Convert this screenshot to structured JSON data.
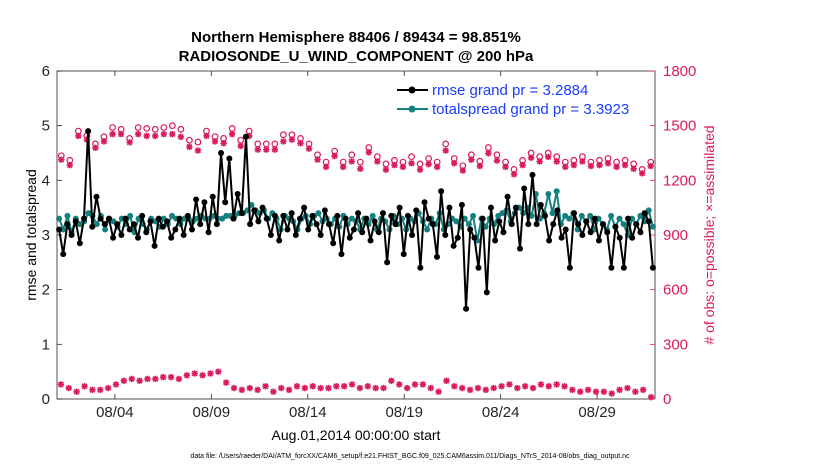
{
  "chart_data": {
    "type": "line",
    "title_line1": "Northern Hemisphere 88406 / 89434 = 98.851%",
    "title_line2": "RADIOSONDE_U_WIND_COMPONENT @ 200 hPa",
    "xlabel": "Aug.01,2014 00:00:00 start",
    "ylabel_left": "rmse and totalspread",
    "ylabel_right": "# of obs: o=possible; ×=assimilated",
    "xlim": [
      0,
      31
    ],
    "ylim_left": [
      0,
      6
    ],
    "ylim_right": [
      0,
      1800
    ],
    "xticks": [
      3,
      8,
      13,
      18,
      23,
      28
    ],
    "xtick_labels": [
      "08/04",
      "08/09",
      "08/14",
      "08/19",
      "08/24",
      "08/29"
    ],
    "yticks_left": [
      0,
      1,
      2,
      3,
      4,
      5,
      6
    ],
    "yticks_left_labels": [
      "0",
      "1",
      "2",
      "3",
      "4",
      "5",
      "6"
    ],
    "yticks_right": [
      0,
      300,
      600,
      900,
      1200,
      1500,
      1800
    ],
    "yticks_right_labels": [
      "0",
      "300",
      "600",
      "900",
      "1200",
      "1500",
      "1800"
    ],
    "legend": [
      {
        "name": "rmse grand pr = 3.2884"
      },
      {
        "name": "totalspread grand pr = 3.3923"
      }
    ],
    "colors": {
      "rmse": "#000000",
      "spread": "#158080",
      "obs": "#d81b60",
      "legend_text": "#1a3cff"
    },
    "footer": "data file: /Users/raeder/DAI/ATM_forcXX/CAM6_setup/f.e21.FHIST_BGC.f09_025.CAM6assim.011/Diags_NTrS_2014-08/obs_diag_output.nc",
    "series": [
      {
        "name": "rmse",
        "axis": "left",
        "values": [
          3.1,
          2.65,
          3.2,
          3.0,
          3.25,
          2.85,
          3.3,
          4.9,
          3.15,
          3.7,
          3.3,
          3.2,
          3.3,
          2.95,
          3.2,
          3.0,
          3.3,
          3.1,
          3.2,
          2.95,
          3.35,
          3.05,
          3.25,
          2.8,
          3.3,
          3.15,
          3.25,
          2.95,
          3.1,
          3.3,
          3.0,
          3.35,
          3.1,
          3.65,
          3.2,
          3.6,
          3.05,
          3.7,
          3.2,
          4.5,
          3.6,
          4.4,
          3.3,
          3.75,
          3.4,
          4.8,
          3.2,
          3.45,
          3.25,
          3.5,
          3.3,
          3.0,
          3.35,
          2.9,
          3.35,
          3.1,
          3.4,
          3.0,
          3.3,
          3.5,
          3.1,
          3.35,
          3.2,
          3.0,
          3.45,
          3.2,
          2.85,
          3.35,
          2.65,
          3.3,
          2.95,
          3.1,
          3.4,
          3.05,
          3.3,
          2.9,
          3.25,
          3.05,
          3.4,
          2.5,
          3.35,
          3.2,
          3.5,
          2.65,
          3.35,
          3.0,
          3.45,
          2.4,
          3.6,
          3.3,
          3.2,
          2.6,
          3.8,
          3.0,
          3.5,
          2.8,
          2.95,
          3.55,
          1.65,
          3.1,
          2.95,
          2.4,
          3.3,
          1.95,
          3.5,
          2.9,
          3.25,
          3.05,
          3.7,
          3.2,
          3.5,
          2.75,
          3.85,
          3.2,
          4.1,
          3.2,
          3.55,
          3.35,
          2.9,
          3.2,
          3.45,
          2.95,
          3.1,
          2.4,
          3.4,
          3.2,
          3.0,
          3.25,
          3.05,
          3.3,
          2.9,
          3.2,
          3.05,
          2.4,
          3.15,
          2.95,
          2.4,
          3.3,
          2.95,
          3.2,
          3.05,
          3.4,
          3.25,
          2.4
        ]
      },
      {
        "name": "totalspread",
        "axis": "left",
        "values": [
          3.3,
          3.1,
          3.35,
          3.05,
          3.3,
          3.2,
          3.25,
          3.4,
          3.35,
          3.2,
          3.35,
          3.1,
          3.3,
          3.25,
          3.15,
          3.3,
          3.2,
          3.35,
          3.05,
          3.3,
          3.2,
          3.1,
          3.3,
          3.25,
          3.15,
          3.3,
          3.2,
          3.35,
          3.3,
          3.2,
          3.3,
          3.3,
          3.25,
          3.3,
          3.35,
          3.3,
          3.3,
          3.35,
          3.3,
          3.3,
          3.35,
          3.35,
          3.35,
          3.4,
          3.4,
          3.45,
          3.55,
          3.45,
          3.4,
          3.45,
          3.3,
          3.4,
          3.3,
          3.1,
          3.35,
          3.3,
          3.25,
          3.1,
          3.3,
          3.35,
          3.2,
          3.35,
          3.4,
          3.25,
          3.3,
          3.2,
          3.3,
          3.15,
          3.35,
          3.2,
          3.3,
          3.25,
          3.1,
          3.3,
          3.2,
          3.35,
          3.1,
          3.3,
          3.25,
          3.1,
          3.35,
          3.2,
          3.3,
          3.1,
          3.3,
          3.25,
          3.4,
          3.25,
          3.1,
          3.3,
          3.2,
          3.4,
          3.1,
          3.2,
          3.3,
          3.25,
          3.15,
          3.3,
          3.2,
          3.35,
          2.9,
          3.3,
          3.15,
          3.3,
          3.2,
          3.35,
          3.4,
          3.45,
          3.25,
          3.4,
          3.5,
          3.4,
          3.5,
          3.35,
          3.75,
          3.3,
          3.4,
          3.75,
          3.4,
          3.8,
          3.2,
          3.35,
          3.3,
          3.4,
          3.1,
          3.35,
          3.25,
          3.35,
          3.1,
          3.3,
          3.2,
          3.1,
          3.35,
          3.15,
          3.3,
          3.2,
          3.0,
          3.3,
          3.2,
          3.35,
          3.25,
          3.45,
          3.15
        ]
      },
      {
        "name": "obs_possible",
        "axis": "right",
        "values": [
          1335,
          1310,
          1470,
          1445,
          1400,
          1440,
          1490,
          1480,
          1430,
          1490,
          1485,
          1480,
          1490,
          1500,
          1480,
          1420,
          1410,
          1470,
          1440,
          1430,
          1485,
          1420,
          1470,
          1400,
          1400,
          1400,
          1450,
          1450,
          1430,
          1400,
          1340,
          1300,
          1360,
          1300,
          1340,
          1300,
          1380,
          1330,
          1290,
          1310,
          1300,
          1330,
          1290,
          1320,
          1300,
          1400,
          1320,
          1280,
          1340,
          1305,
          1380,
          1340,
          1300,
          1260,
          1310,
          1350,
          1330,
          1350,
          1330,
          1300,
          1310,
          1330,
          1300,
          1310,
          1320,
          1300,
          1310,
          1290,
          1260,
          1300
        ]
      },
      {
        "name": "obs_assimilated",
        "axis": "right",
        "values": [
          1330,
          1300,
          1460,
          1440,
          1395,
          1430,
          1470,
          1470,
          1425,
          1470,
          1460,
          1460,
          1470,
          1470,
          1455,
          1400,
          1380,
          1460,
          1430,
          1420,
          1470,
          1405,
          1460,
          1385,
          1385,
          1385,
          1430,
          1440,
          1420,
          1390,
          1330,
          1290,
          1350,
          1290,
          1320,
          1280,
          1370,
          1320,
          1275,
          1300,
          1290,
          1310,
          1275,
          1305,
          1290,
          1380,
          1310,
          1270,
          1330,
          1295,
          1365,
          1325,
          1290,
          1250,
          1300,
          1340,
          1320,
          1345,
          1320,
          1290,
          1300,
          1320,
          1295,
          1300,
          1310,
          1290,
          1300,
          1280,
          1255,
          1295
        ]
      },
      {
        "name": "obs_low",
        "axis": "right",
        "values": [
          80,
          60,
          40,
          70,
          50,
          50,
          60,
          80,
          100,
          110,
          100,
          110,
          110,
          120,
          120,
          110,
          130,
          140,
          130,
          140,
          150,
          90,
          60,
          50,
          60,
          50,
          70,
          40,
          60,
          50,
          70,
          60,
          70,
          60,
          60,
          70,
          70,
          80,
          60,
          70,
          60,
          60,
          100,
          80,
          60,
          80,
          80,
          60,
          40,
          100,
          70,
          60,
          50,
          60,
          50,
          60,
          70,
          80,
          60,
          70,
          60,
          80,
          70,
          80,
          70,
          50,
          40,
          50,
          40,
          40,
          30,
          50,
          60,
          40,
          50,
          10
        ]
      }
    ]
  }
}
